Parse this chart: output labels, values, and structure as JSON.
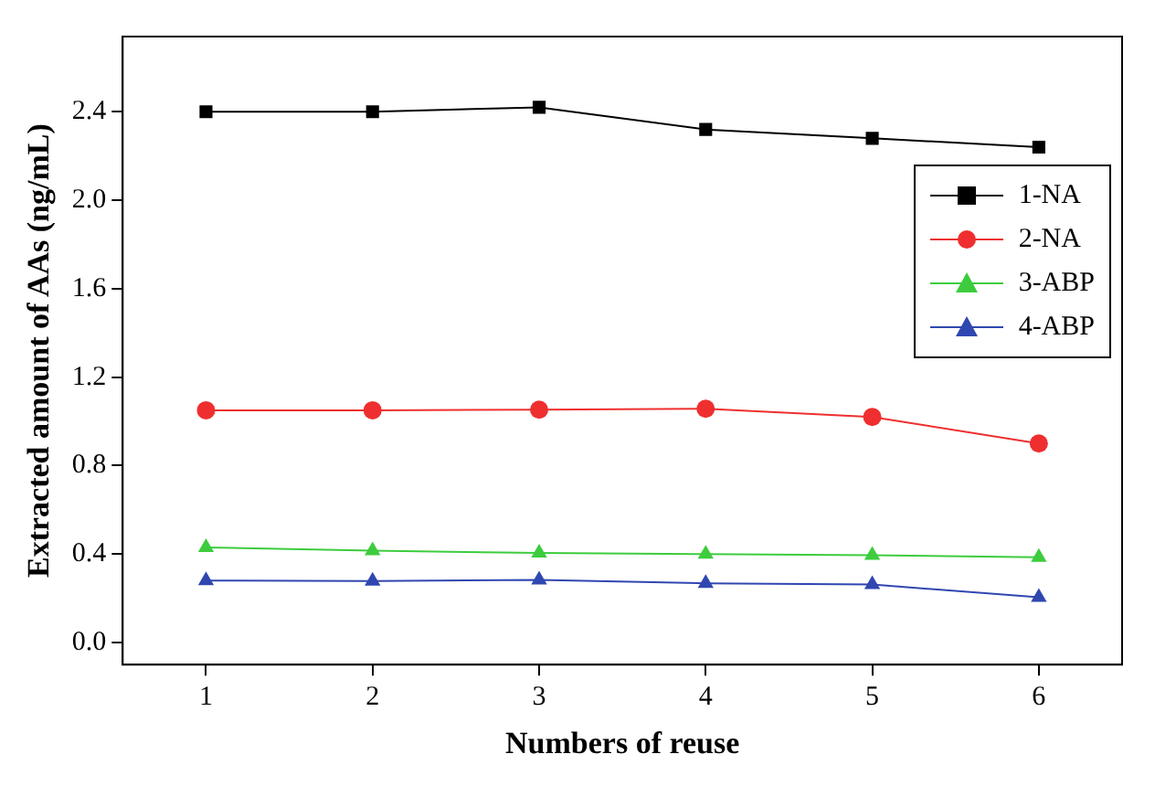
{
  "chart_data": {
    "type": "line",
    "xlabel": "Numbers of reuse",
    "ylabel": "Extracted amount of AAs (ng/mL)",
    "x": [
      1,
      2,
      3,
      4,
      5,
      6
    ],
    "xlim": [
      0.5,
      6.5
    ],
    "xticks": [
      1,
      2,
      3,
      4,
      5,
      6
    ],
    "ylim": [
      -0.1,
      2.74
    ],
    "yticks": [
      {
        "value": 0,
        "label": "0.0"
      },
      0.4,
      0.8,
      1.2,
      1.6,
      {
        "value": 2,
        "label": "2.0"
      },
      2.4
    ],
    "grid": false,
    "legend": "right",
    "line_style": "solid",
    "series": [
      {
        "name": "1-NA",
        "color": "#000000",
        "marker": "square",
        "values": [
          2.4,
          2.4,
          2.42,
          2.32,
          2.28,
          2.24
        ]
      },
      {
        "name": "2-NA",
        "color": "#ef2f2f",
        "marker": "circle",
        "values": [
          1.05,
          1.05,
          1.053,
          1.057,
          1.02,
          0.9
        ]
      },
      {
        "name": "3-ABP",
        "color": "#3dcc3d",
        "marker": "triangle",
        "values": [
          0.43,
          0.415,
          0.405,
          0.4,
          0.395,
          0.385
        ]
      },
      {
        "name": "4-ABP",
        "color": "#3047b0",
        "marker": "triangle",
        "values": [
          0.28,
          0.278,
          0.283,
          0.268,
          0.262,
          0.205
        ]
      }
    ]
  }
}
